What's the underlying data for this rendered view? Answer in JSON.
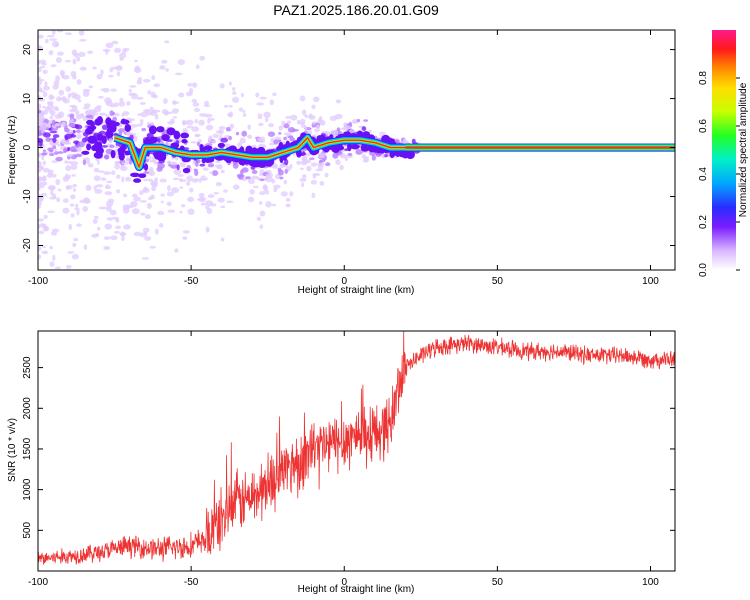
{
  "title": "PAZ1.2025.186.20.01.G09",
  "chart_data": [
    {
      "type": "heatmap",
      "xlabel": "Height of straight line (km)",
      "ylabel": "Frequency (Hz)",
      "xlim": [
        -100,
        108
      ],
      "ylim": [
        -25,
        24
      ],
      "xticks": [
        -100,
        -50,
        0,
        50,
        100
      ],
      "yticks": [
        -20,
        -10,
        0,
        10,
        20
      ],
      "colorbar": {
        "label": "Normalized spectral amplitude",
        "range": [
          0,
          1
        ],
        "ticks": [
          0.0,
          0.2,
          0.4,
          0.6,
          0.8
        ]
      },
      "ridge": {
        "x": [
          -75,
          -70,
          -67,
          -65,
          -60,
          -55,
          -50,
          -45,
          -40,
          -35,
          -30,
          -25,
          -20,
          -15,
          -12,
          -10,
          -5,
          0,
          5,
          10,
          15,
          20,
          30,
          50,
          75,
          108
        ],
        "y": [
          2,
          1,
          -4,
          0,
          0,
          -1,
          -1.5,
          -1.5,
          -1,
          -1.5,
          -2,
          -2,
          -1,
          0,
          2,
          0,
          1,
          1.5,
          1.5,
          1,
          0,
          0,
          0,
          0,
          0,
          0
        ]
      },
      "grid": false
    },
    {
      "type": "line",
      "xlabel": "Height of straight line (km)",
      "ylabel": "SNR (10 * v/v)",
      "xlim": [
        -100,
        108
      ],
      "ylim": [
        0,
        2950
      ],
      "xticks": [
        -100,
        -50,
        0,
        50,
        100
      ],
      "yticks": [
        500,
        1000,
        1500,
        2000,
        2500
      ],
      "series": [
        {
          "color": "#ee3333",
          "x": [
            -100,
            -90,
            -80,
            -70,
            -60,
            -50,
            -45,
            -40,
            -35,
            -30,
            -25,
            -20,
            -15,
            -10,
            -5,
            0,
            5,
            10,
            15,
            18,
            20,
            25,
            30,
            40,
            50,
            60,
            70,
            80,
            90,
            100,
            108
          ],
          "y": [
            150,
            180,
            230,
            310,
            270,
            310,
            400,
            650,
            850,
            900,
            1050,
            1250,
            1350,
            1500,
            1550,
            1600,
            1700,
            1700,
            1800,
            2300,
            2500,
            2650,
            2750,
            2800,
            2750,
            2700,
            2700,
            2650,
            2650,
            2600,
            2600
          ]
        }
      ],
      "grid": false
    }
  ]
}
